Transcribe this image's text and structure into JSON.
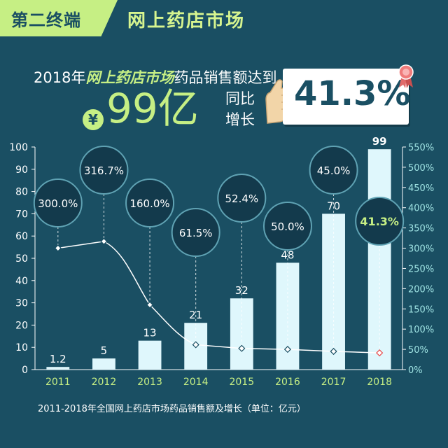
{
  "header": {
    "section_tag": "第二终端",
    "section_title": "网上药店市场"
  },
  "headline": {
    "prefix": "2018年",
    "highlight": "网上药店市场",
    "suffix": "药品销售额达到",
    "currency": "¥",
    "amount": "99亿",
    "growth_label_line1": "同比",
    "growth_label_line2": "增长",
    "growth_value": "41.3%"
  },
  "caption": "2011-2018年全国网上药店市场药品销售额及增长（单位：亿元）",
  "colors": {
    "background": "#1a4f63",
    "accent": "#c6ef84",
    "bar": "#dff7fc",
    "line": "#ffffff",
    "highlight_marker": "#e84a4a"
  },
  "chart_data": {
    "type": "bar",
    "categories": [
      "2011",
      "2012",
      "2013",
      "2014",
      "2015",
      "2016",
      "2017",
      "2018"
    ],
    "series": [
      {
        "type": "bar",
        "values": [
          1.2,
          5,
          13,
          21,
          32,
          48,
          70,
          99
        ],
        "labels": [
          "1.2",
          "5",
          "13",
          "21",
          "32",
          "48",
          "70",
          "99"
        ]
      },
      {
        "type": "line",
        "axis": "right",
        "values": [
          300.0,
          316.7,
          160.0,
          61.5,
          52.4,
          50.0,
          45.0,
          41.3
        ],
        "labels": [
          "300.0%",
          "316.7%",
          "160.0%",
          "61.5%",
          "52.4%",
          "50.0%",
          "45.0%",
          "41.3%"
        ]
      }
    ],
    "y_left": {
      "min": 0,
      "max": 100,
      "ticks": [
        "0",
        "10",
        "20",
        "30",
        "40",
        "50",
        "60",
        "70",
        "80",
        "90",
        "100"
      ]
    },
    "y_right": {
      "min": 0,
      "max": 550,
      "ticks": [
        "0%",
        "50%",
        "100%",
        "150%",
        "200%",
        "250%",
        "300%",
        "350%",
        "400%",
        "450%",
        "500%",
        "550%"
      ]
    },
    "grid": false
  }
}
